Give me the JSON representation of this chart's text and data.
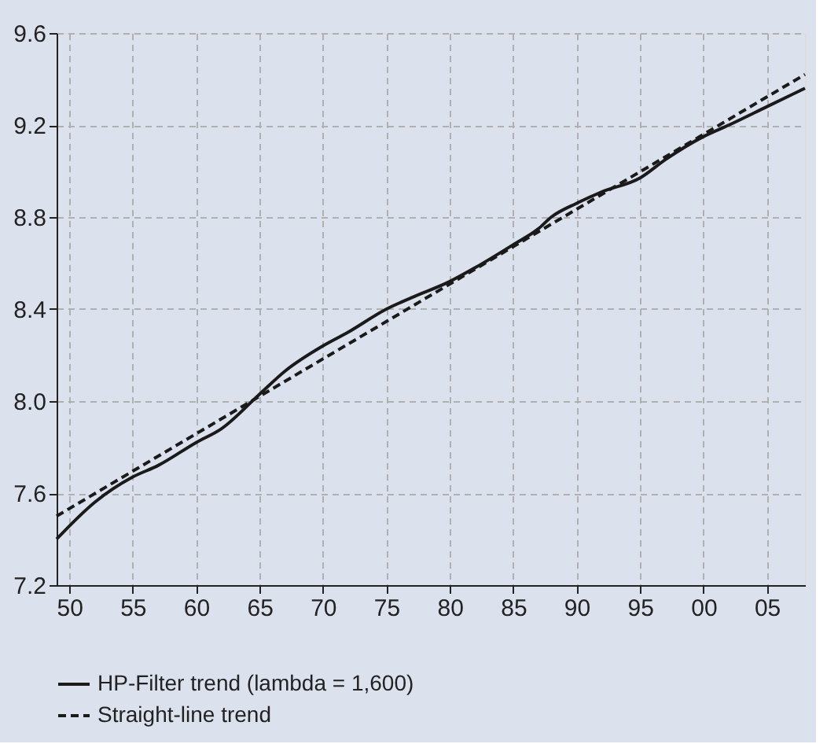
{
  "chart_data": {
    "type": "line",
    "xlim": [
      1949,
      2008
    ],
    "ylim": [
      7.2,
      9.6
    ],
    "xticks": [
      {
        "value": 1950,
        "label": "50"
      },
      {
        "value": 1955,
        "label": "55"
      },
      {
        "value": 1960,
        "label": "60"
      },
      {
        "value": 1965,
        "label": "65"
      },
      {
        "value": 1970,
        "label": "70"
      },
      {
        "value": 1975,
        "label": "75"
      },
      {
        "value": 1980,
        "label": "80"
      },
      {
        "value": 1985,
        "label": "85"
      },
      {
        "value": 1990,
        "label": "90"
      },
      {
        "value": 1995,
        "label": "95"
      },
      {
        "value": 2000,
        "label": "00"
      },
      {
        "value": 2005,
        "label": "05"
      }
    ],
    "yticks": [
      {
        "value": 7.2,
        "label": "7.2"
      },
      {
        "value": 7.6,
        "label": "7.6"
      },
      {
        "value": 8.0,
        "label": "8.0"
      },
      {
        "value": 8.4,
        "label": "8.4"
      },
      {
        "value": 8.8,
        "label": "8.8"
      },
      {
        "value": 9.2,
        "label": "9.2"
      },
      {
        "value": 9.6,
        "label": "9.6"
      }
    ],
    "grid": true,
    "legend": "bottom",
    "marker": "none",
    "series": [
      {
        "name": "HP-Filter trend (lambda = 1,600)",
        "color": "#1a1a1a",
        "line_style": "solid",
        "x": [
          1949,
          1952,
          1955,
          1957,
          1960,
          1962,
          1965,
          1967,
          1970,
          1972,
          1975,
          1977,
          1980,
          1982,
          1985,
          1987,
          1988,
          1990,
          1992,
          1995,
          1997,
          2000,
          2002,
          2005,
          2008
        ],
        "values": [
          7.4,
          7.56,
          7.67,
          7.72,
          7.82,
          7.88,
          8.03,
          8.13,
          8.24,
          8.3,
          8.4,
          8.45,
          8.52,
          8.58,
          8.68,
          8.75,
          8.8,
          8.86,
          8.91,
          8.97,
          9.05,
          9.15,
          9.2,
          9.28,
          9.36
        ]
      },
      {
        "name": "Straight-line trend",
        "color": "#1a1a1a",
        "line_style": "dashed",
        "x": [
          1949,
          2008
        ],
        "values": [
          7.5,
          9.42
        ]
      }
    ]
  }
}
